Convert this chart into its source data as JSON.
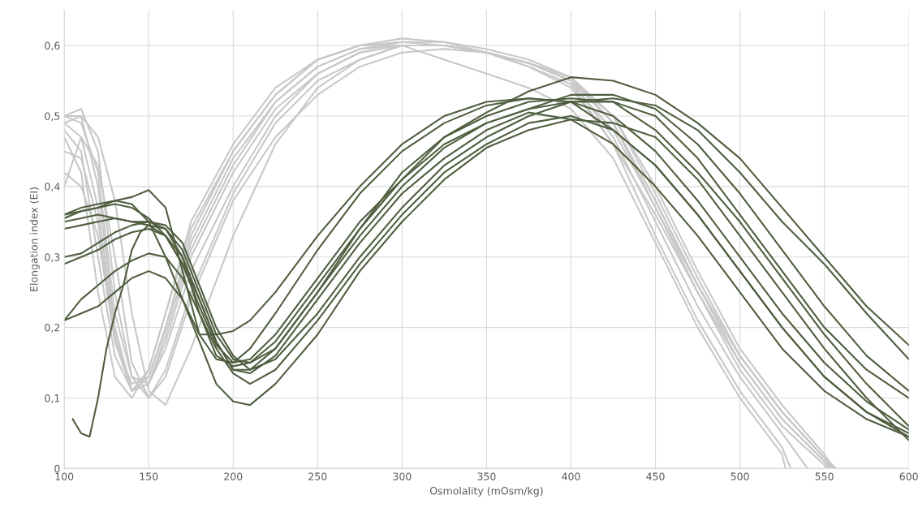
{
  "chart_data": {
    "type": "line",
    "xlabel": "Osmolality (mOsm/kg)",
    "ylabel": "Elongation index (EI)",
    "xlim": [
      100,
      600
    ],
    "xticks": [
      100,
      150,
      200,
      250,
      300,
      350,
      400,
      450,
      500,
      550,
      600
    ],
    "ylim": [
      0,
      0.65
    ],
    "yticks": [
      {
        "value": 0,
        "label": "0"
      },
      {
        "value": 0.1,
        "label": "0,1"
      },
      {
        "value": 0.2,
        "label": "0,2"
      },
      {
        "value": 0.3,
        "label": "0,3"
      },
      {
        "value": 0.4,
        "label": "0,4"
      },
      {
        "value": 0.5,
        "label": "0,5"
      },
      {
        "value": 0.6,
        "label": "0,6"
      }
    ],
    "grid": true,
    "marker": "none",
    "line_style": "solid",
    "series": [
      {
        "color": "#c8c8c8",
        "x": [
          100,
          110,
          120,
          130,
          140,
          150,
          160,
          175,
          200,
          225,
          250,
          275,
          300,
          325,
          350,
          375,
          400,
          425,
          450,
          475,
          500,
          525,
          550,
          557
        ],
        "values": [
          0.5,
          0.51,
          0.45,
          0.25,
          0.13,
          0.12,
          0.17,
          0.28,
          0.4,
          0.5,
          0.56,
          0.59,
          0.6,
          0.6,
          0.59,
          0.575,
          0.55,
          0.5,
          0.39,
          0.27,
          0.16,
          0.08,
          0.015,
          0
        ]
      },
      {
        "color": "#c8c8c8",
        "x": [
          100,
          110,
          120,
          130,
          140,
          150,
          160,
          175,
          200,
          225,
          250,
          275,
          300,
          325,
          350,
          375,
          400,
          425,
          450,
          475,
          500,
          525,
          550,
          552
        ],
        "values": [
          0.49,
          0.5,
          0.4,
          0.2,
          0.11,
          0.12,
          0.19,
          0.31,
          0.43,
          0.52,
          0.57,
          0.595,
          0.605,
          0.605,
          0.595,
          0.58,
          0.555,
          0.49,
          0.37,
          0.25,
          0.14,
          0.06,
          0.005,
          0
        ]
      },
      {
        "color": "#c8c8c8",
        "x": [
          100,
          110,
          120,
          130,
          140,
          150,
          160,
          175,
          200,
          225,
          250,
          275,
          300,
          325,
          350,
          375,
          400,
          425,
          450,
          475,
          500,
          525,
          540
        ],
        "values": [
          0.48,
          0.45,
          0.3,
          0.16,
          0.11,
          0.14,
          0.22,
          0.34,
          0.45,
          0.53,
          0.58,
          0.6,
          0.61,
          0.605,
          0.59,
          0.575,
          0.55,
          0.47,
          0.35,
          0.23,
          0.13,
          0.05,
          0
        ]
      },
      {
        "color": "#c8c8c8",
        "x": [
          100,
          110,
          120,
          130,
          140,
          150,
          160,
          175,
          200,
          225,
          250,
          275,
          300,
          325,
          350,
          375,
          400,
          425,
          450,
          475,
          500,
          525,
          550,
          553
        ],
        "values": [
          0.45,
          0.44,
          0.35,
          0.18,
          0.12,
          0.13,
          0.2,
          0.32,
          0.44,
          0.52,
          0.57,
          0.595,
          0.6,
          0.6,
          0.59,
          0.57,
          0.54,
          0.46,
          0.36,
          0.25,
          0.15,
          0.07,
          0.01,
          0
        ]
      },
      {
        "color": "#c8c8c8",
        "x": [
          100,
          110,
          120,
          130,
          140,
          150,
          160,
          175,
          200,
          225,
          250,
          275,
          300,
          325,
          350,
          375,
          400,
          425,
          450,
          475,
          500,
          525,
          550,
          555
        ],
        "values": [
          0.42,
          0.4,
          0.33,
          0.18,
          0.11,
          0.13,
          0.2,
          0.33,
          0.45,
          0.53,
          0.58,
          0.6,
          0.605,
          0.6,
          0.59,
          0.57,
          0.545,
          0.48,
          0.37,
          0.26,
          0.15,
          0.07,
          0.01,
          0
        ]
      },
      {
        "color": "#c8c8c8",
        "x": [
          100,
          110,
          120,
          130,
          140,
          150,
          160,
          175,
          200,
          225,
          250,
          275,
          300,
          325,
          350,
          375,
          400,
          425,
          450,
          475,
          500,
          525,
          550,
          556
        ],
        "values": [
          0.4,
          0.47,
          0.43,
          0.3,
          0.15,
          0.1,
          0.14,
          0.25,
          0.39,
          0.49,
          0.55,
          0.58,
          0.6,
          0.6,
          0.59,
          0.575,
          0.555,
          0.5,
          0.4,
          0.28,
          0.17,
          0.09,
          0.02,
          0
        ]
      },
      {
        "color": "#c8c8c8",
        "x": [
          100,
          110,
          120,
          130,
          140,
          150,
          160,
          175,
          200,
          225,
          250,
          275,
          300,
          325,
          350,
          375,
          400,
          425,
          450,
          475,
          500,
          525,
          550,
          555
        ],
        "values": [
          0.5,
          0.49,
          0.42,
          0.22,
          0.13,
          0.1,
          0.13,
          0.24,
          0.38,
          0.47,
          0.53,
          0.57,
          0.59,
          0.595,
          0.59,
          0.575,
          0.555,
          0.49,
          0.38,
          0.26,
          0.16,
          0.08,
          0.015,
          0
        ]
      },
      {
        "color": "#c8c8c8",
        "x": [
          100,
          110,
          120,
          130,
          140,
          150,
          160,
          175,
          200,
          225,
          250,
          275,
          300,
          325,
          350,
          375,
          400,
          425,
          450,
          475,
          500,
          525,
          530
        ],
        "values": [
          0.49,
          0.47,
          0.37,
          0.19,
          0.11,
          0.12,
          0.18,
          0.3,
          0.42,
          0.51,
          0.56,
          0.59,
          0.6,
          0.6,
          0.59,
          0.57,
          0.545,
          0.46,
          0.33,
          0.21,
          0.11,
          0.03,
          0
        ]
      },
      {
        "color": "#c8c8c8",
        "x": [
          100,
          110,
          120,
          130,
          140,
          150,
          160,
          175,
          200,
          225,
          250,
          275,
          300,
          325,
          350,
          375,
          400,
          425,
          450,
          475,
          500,
          525,
          527
        ],
        "values": [
          0.47,
          0.42,
          0.25,
          0.13,
          0.1,
          0.14,
          0.22,
          0.35,
          0.46,
          0.54,
          0.58,
          0.6,
          0.6,
          0.58,
          0.56,
          0.54,
          0.51,
          0.44,
          0.32,
          0.2,
          0.1,
          0.02,
          0
        ]
      },
      {
        "color": "#c8c8c8",
        "x": [
          100,
          110,
          120,
          130,
          140,
          150,
          160,
          175,
          200,
          225,
          250,
          275,
          300,
          325,
          350,
          375,
          400,
          425,
          450,
          475,
          500,
          525,
          550,
          556
        ],
        "values": [
          0.5,
          0.5,
          0.47,
          0.38,
          0.22,
          0.11,
          0.09,
          0.17,
          0.33,
          0.46,
          0.54,
          0.58,
          0.6,
          0.6,
          0.59,
          0.575,
          0.55,
          0.49,
          0.38,
          0.26,
          0.16,
          0.08,
          0.015,
          0
        ]
      },
      {
        "color": "#4f5e3f",
        "x": [
          100,
          110,
          120,
          130,
          140,
          150,
          160,
          170,
          180,
          190,
          200,
          210,
          225,
          250,
          275,
          300,
          325,
          350,
          375,
          400,
          425,
          450,
          475,
          500,
          525,
          550,
          575,
          600
        ],
        "values": [
          0.36,
          0.37,
          0.375,
          0.38,
          0.385,
          0.395,
          0.37,
          0.28,
          0.19,
          0.155,
          0.15,
          0.17,
          0.22,
          0.31,
          0.39,
          0.45,
          0.49,
          0.515,
          0.525,
          0.52,
          0.5,
          0.45,
          0.38,
          0.3,
          0.22,
          0.15,
          0.095,
          0.055
        ]
      },
      {
        "color": "#4f5e3f",
        "x": [
          100,
          110,
          120,
          130,
          140,
          150,
          160,
          170,
          180,
          190,
          200,
          210,
          225,
          250,
          275,
          300,
          325,
          350,
          375,
          400,
          425,
          450,
          475,
          500,
          525,
          550,
          575,
          600
        ],
        "values": [
          0.355,
          0.365,
          0.37,
          0.38,
          0.375,
          0.35,
          0.3,
          0.24,
          0.19,
          0.19,
          0.195,
          0.21,
          0.25,
          0.33,
          0.4,
          0.46,
          0.5,
          0.52,
          0.525,
          0.52,
          0.48,
          0.43,
          0.36,
          0.28,
          0.2,
          0.13,
          0.08,
          0.045
        ]
      },
      {
        "color": "#4f5e3f",
        "x": [
          100,
          110,
          120,
          130,
          140,
          150,
          160,
          170,
          180,
          190,
          200,
          210,
          225,
          250,
          275,
          300,
          325,
          350,
          375,
          400,
          425,
          450,
          475,
          500,
          525,
          550,
          575,
          600
        ],
        "values": [
          0.35,
          0.355,
          0.36,
          0.355,
          0.35,
          0.345,
          0.33,
          0.29,
          0.23,
          0.175,
          0.15,
          0.155,
          0.19,
          0.27,
          0.35,
          0.41,
          0.46,
          0.49,
          0.51,
          0.52,
          0.52,
          0.5,
          0.44,
          0.36,
          0.28,
          0.2,
          0.14,
          0.1
        ]
      },
      {
        "color": "#4f5e3f",
        "x": [
          100,
          110,
          120,
          130,
          140,
          150,
          160,
          170,
          180,
          190,
          200,
          210,
          225,
          250,
          275,
          300,
          325,
          350,
          375,
          400,
          425,
          450,
          475,
          500,
          525,
          550,
          575,
          600
        ],
        "values": [
          0.34,
          0.345,
          0.35,
          0.355,
          0.35,
          0.35,
          0.34,
          0.31,
          0.25,
          0.19,
          0.155,
          0.15,
          0.17,
          0.25,
          0.33,
          0.4,
          0.455,
          0.49,
          0.51,
          0.53,
          0.53,
          0.51,
          0.46,
          0.39,
          0.31,
          0.23,
          0.16,
          0.11
        ]
      },
      {
        "color": "#4f5e3f",
        "x": [
          100,
          110,
          120,
          130,
          140,
          150,
          160,
          170,
          180,
          190,
          200,
          210,
          225,
          250,
          275,
          300,
          325,
          350,
          375,
          400,
          425,
          450,
          475,
          500,
          525,
          550,
          575,
          600
        ],
        "values": [
          0.3,
          0.305,
          0.32,
          0.335,
          0.345,
          0.35,
          0.345,
          0.32,
          0.26,
          0.2,
          0.16,
          0.14,
          0.155,
          0.22,
          0.3,
          0.37,
          0.43,
          0.47,
          0.5,
          0.52,
          0.525,
          0.515,
          0.48,
          0.42,
          0.35,
          0.29,
          0.22,
          0.155
        ]
      },
      {
        "color": "#4f5e3f",
        "x": [
          100,
          110,
          120,
          130,
          140,
          150,
          160,
          170,
          180,
          190,
          200,
          210,
          225,
          250,
          275,
          300,
          325,
          350,
          375,
          400,
          425,
          450,
          475,
          500,
          525,
          550,
          575,
          600
        ],
        "values": [
          0.29,
          0.3,
          0.31,
          0.325,
          0.335,
          0.34,
          0.33,
          0.3,
          0.24,
          0.18,
          0.14,
          0.135,
          0.16,
          0.24,
          0.32,
          0.39,
          0.44,
          0.48,
          0.505,
          0.495,
          0.46,
          0.4,
          0.33,
          0.25,
          0.17,
          0.11,
          0.07,
          0.045
        ]
      },
      {
        "color": "#4f5e3f",
        "x": [
          100,
          110,
          120,
          130,
          140,
          150,
          160,
          170,
          180,
          190,
          200,
          210,
          225,
          250,
          275,
          300,
          325,
          350,
          375,
          400,
          425,
          450,
          475,
          500,
          525,
          550,
          575,
          600
        ],
        "values": [
          0.21,
          0.24,
          0.26,
          0.28,
          0.295,
          0.305,
          0.3,
          0.27,
          0.22,
          0.17,
          0.135,
          0.12,
          0.14,
          0.21,
          0.29,
          0.36,
          0.42,
          0.46,
          0.49,
          0.5,
          0.48,
          0.43,
          0.36,
          0.28,
          0.2,
          0.13,
          0.08,
          0.05
        ]
      },
      {
        "color": "#4f5e3f",
        "x": [
          100,
          110,
          120,
          130,
          140,
          150,
          160,
          170,
          180,
          190,
          200,
          210,
          225,
          250,
          275,
          300,
          325,
          350,
          375,
          400,
          425,
          450,
          475,
          500,
          525,
          550,
          575,
          600
        ],
        "values": [
          0.21,
          0.22,
          0.23,
          0.25,
          0.27,
          0.28,
          0.27,
          0.24,
          0.18,
          0.12,
          0.095,
          0.09,
          0.12,
          0.19,
          0.28,
          0.35,
          0.41,
          0.455,
          0.48,
          0.495,
          0.49,
          0.47,
          0.41,
          0.33,
          0.25,
          0.17,
          0.1,
          0.04
        ]
      },
      {
        "color": "#4f5e3f",
        "x": [
          100,
          110,
          120,
          130,
          140,
          150,
          160,
          170,
          180,
          190,
          200,
          210,
          225,
          250,
          275,
          300,
          325,
          350,
          375,
          400,
          425,
          450,
          475,
          500,
          525,
          550,
          575,
          600
        ],
        "values": [
          0.36,
          0.365,
          0.37,
          0.375,
          0.37,
          0.355,
          0.33,
          0.29,
          0.24,
          0.18,
          0.14,
          0.14,
          0.17,
          0.25,
          0.34,
          0.41,
          0.47,
          0.505,
          0.535,
          0.555,
          0.55,
          0.53,
          0.49,
          0.44,
          0.37,
          0.3,
          0.23,
          0.175
        ]
      },
      {
        "color": "#4f5e3f",
        "x": [
          105,
          110,
          115,
          120,
          125,
          130,
          135,
          140,
          145,
          150,
          160,
          170,
          180,
          190,
          200,
          210,
          225,
          250,
          275,
          300,
          325,
          350,
          375,
          400,
          425,
          450,
          475,
          500,
          525,
          550,
          575,
          600
        ],
        "values": [
          0.07,
          0.05,
          0.045,
          0.1,
          0.17,
          0.22,
          0.26,
          0.31,
          0.335,
          0.345,
          0.34,
          0.3,
          0.22,
          0.16,
          0.145,
          0.15,
          0.18,
          0.26,
          0.34,
          0.42,
          0.47,
          0.5,
          0.52,
          0.525,
          0.52,
          0.48,
          0.42,
          0.35,
          0.27,
          0.19,
          0.12,
          0.06
        ]
      }
    ]
  }
}
